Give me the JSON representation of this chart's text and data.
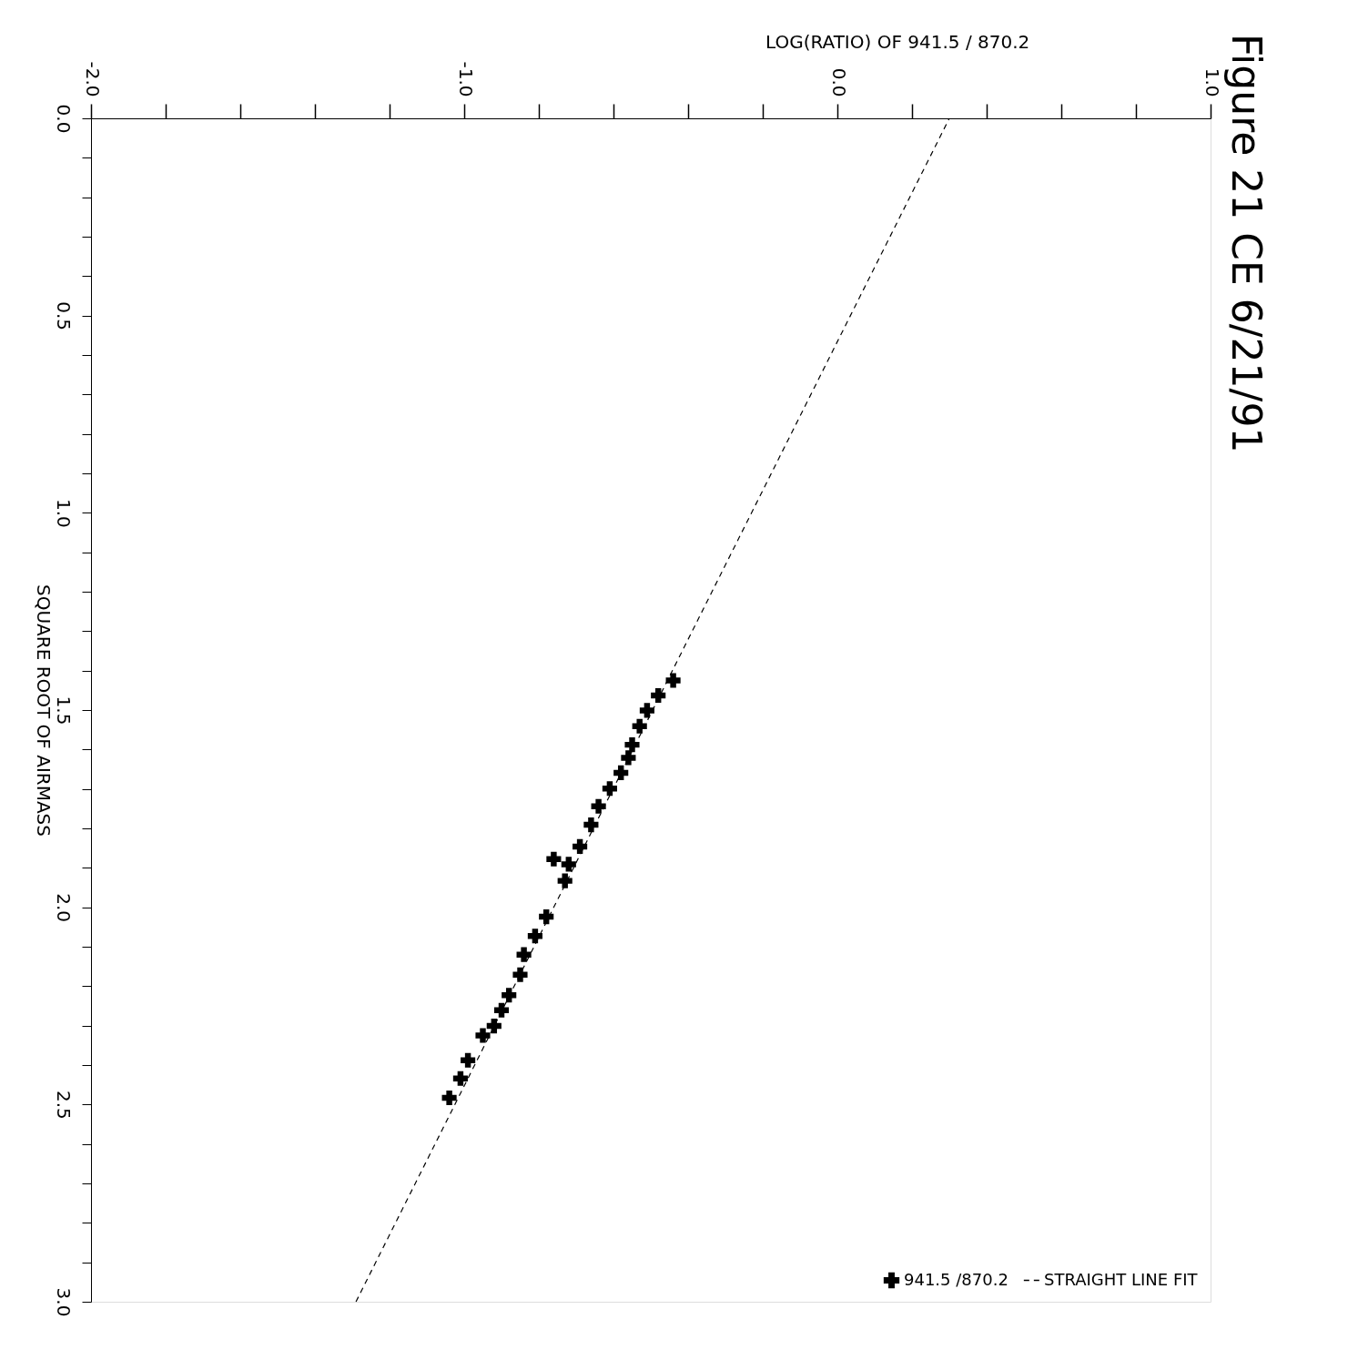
{
  "chart_data": {
    "type": "scatter",
    "title": "Figure 21  CE  6/21/91",
    "xlabel": "LOG(RATIO) OF 941.5 / 870.2",
    "ylabel": "SQUARE ROOT OF AIRMASS",
    "xlim": [
      -2,
      1
    ],
    "ylim": [
      3,
      0
    ],
    "yticks": [
      {
        "value": 0,
        "label": "0.0"
      },
      {
        "value": 0.1,
        "label": null
      },
      {
        "value": 0.2,
        "label": null
      },
      {
        "value": 0.3,
        "label": null
      },
      {
        "value": 0.4,
        "label": null
      },
      {
        "value": 0.5,
        "label": "0.5"
      },
      {
        "value": 0.6,
        "label": null
      },
      {
        "value": 0.7,
        "label": null
      },
      {
        "value": 0.8,
        "label": null
      },
      {
        "value": 0.9,
        "label": null
      },
      {
        "value": 1.0,
        "label": "1.0"
      },
      {
        "value": 1.1,
        "label": null
      },
      {
        "value": 1.2,
        "label": null
      },
      {
        "value": 1.3,
        "label": null
      },
      {
        "value": 1.4,
        "label": null
      },
      {
        "value": 1.5,
        "label": "1.5"
      },
      {
        "value": 1.6,
        "label": null
      },
      {
        "value": 1.7,
        "label": null
      },
      {
        "value": 1.8,
        "label": null
      },
      {
        "value": 1.9,
        "label": null
      },
      {
        "value": 2.0,
        "label": "2.0"
      },
      {
        "value": 2.1,
        "label": null
      },
      {
        "value": 2.2,
        "label": null
      },
      {
        "value": 2.3,
        "label": null
      },
      {
        "value": 2.4,
        "label": null
      },
      {
        "value": 2.5,
        "label": "2.5"
      },
      {
        "value": 2.6,
        "label": null
      },
      {
        "value": 2.7,
        "label": null
      },
      {
        "value": 2.8,
        "label": null
      },
      {
        "value": 2.9,
        "label": null
      },
      {
        "value": 3.0,
        "label": "3.0"
      }
    ],
    "xticks": [
      {
        "value": -2,
        "label": "-2.0"
      },
      {
        "value": -1.8,
        "label": null
      },
      {
        "value": -1.6,
        "label": null
      },
      {
        "value": -1.4,
        "label": null
      },
      {
        "value": -1.2,
        "label": null
      },
      {
        "value": -1,
        "label": "-1.0"
      },
      {
        "value": -0.8,
        "label": null
      },
      {
        "value": -0.6,
        "label": null
      },
      {
        "value": -0.4,
        "label": null
      },
      {
        "value": -0.2,
        "label": null
      },
      {
        "value": 0,
        "label": "0.0"
      },
      {
        "value": 0.2,
        "label": null
      },
      {
        "value": 0.4,
        "label": null
      },
      {
        "value": 0.6,
        "label": null
      },
      {
        "value": 0.8,
        "label": null
      },
      {
        "value": 1,
        "label": "1.0"
      }
    ],
    "grid": false,
    "legend": "bottom right",
    "series": [
      {
        "name": "941.5 /870.2",
        "type": "scatter",
        "marker": "cross",
        "color": "#000000",
        "x": [
          -0.44,
          -0.48,
          -0.51,
          -0.53,
          -0.55,
          -0.56,
          -0.58,
          -0.61,
          -0.64,
          -0.66,
          -0.69,
          -0.76,
          -0.72,
          -0.73,
          -0.78,
          -0.81,
          -0.84,
          -0.85,
          -0.88,
          -0.9,
          -0.92,
          -0.95,
          -0.99,
          -1.01,
          -1.04
        ],
        "values": [
          1.425,
          1.463,
          1.501,
          1.541,
          1.588,
          1.621,
          1.659,
          1.699,
          1.744,
          1.791,
          1.846,
          1.878,
          1.891,
          1.933,
          2.024,
          2.073,
          2.12,
          2.171,
          2.223,
          2.261,
          2.301,
          2.325,
          2.388,
          2.434,
          2.483
        ]
      },
      {
        "name": "STRAIGHT LINE FIT",
        "type": "line",
        "line_style": "dashed",
        "color": "#000000",
        "x": [
          0.3,
          -1.29
        ],
        "values": [
          0,
          3
        ]
      }
    ]
  }
}
